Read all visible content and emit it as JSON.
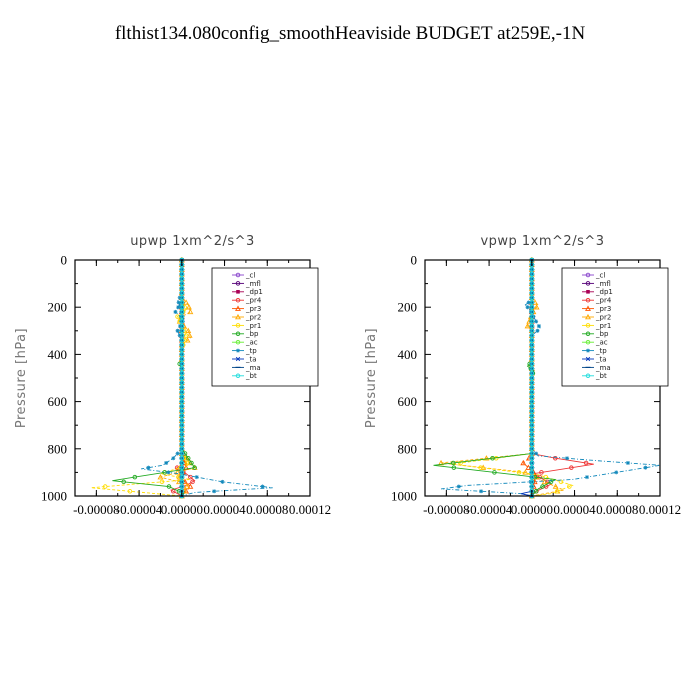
{
  "title": "flthist134.080config_smoothHeaviside  BUDGET at259E,-1N",
  "chart_data": [
    {
      "type": "line",
      "title": "upwp   1xm^2/s^3",
      "xlabel": "",
      "ylabel": "Pressure [hPa]",
      "xlim": [
        -0.0001,
        0.00012
      ],
      "ylim": [
        1000,
        0
      ],
      "xticks": [
        "-0.00008",
        "-0.00004",
        "0.00000",
        "0.00004",
        "0.00008",
        "0.00012"
      ],
      "xtick_values": [
        -8e-05,
        -4e-05,
        0,
        4e-05,
        8e-05,
        0.00012
      ],
      "yticks": [
        "0",
        "200",
        "400",
        "600",
        "800",
        "1000"
      ],
      "ytick_values": [
        0,
        200,
        400,
        600,
        800,
        1000
      ],
      "legend": "top-right",
      "series": [
        {
          "name": "_cl",
          "color": "#8844cc",
          "values": [
            [
              0,
              0
            ],
            [
              0,
              200
            ],
            [
              0,
              400
            ],
            [
              0,
              600
            ],
            [
              0,
              800
            ],
            [
              0,
              1000
            ]
          ]
        },
        {
          "name": "_mfl",
          "color": "#550077",
          "values": [
            [
              0,
              0
            ],
            [
              0,
              200
            ],
            [
              0,
              400
            ],
            [
              0,
              600
            ],
            [
              0,
              800
            ],
            [
              0,
              1000
            ]
          ]
        },
        {
          "name": "_dp1",
          "color": "#aa0055",
          "values": [
            [
              0,
              0
            ],
            [
              0,
              200
            ],
            [
              0,
              400
            ],
            [
              0,
              600
            ],
            [
              0,
              800
            ],
            [
              0,
              1000
            ]
          ]
        },
        {
          "name": "_pr4",
          "color": "#ee3333",
          "values": [
            [
              0,
              0
            ],
            [
              0,
              800
            ],
            [
              2e-06,
              860
            ],
            [
              -6e-06,
              885
            ],
            [
              4e-06,
              905
            ],
            [
              1.2e-05,
              935
            ],
            [
              4e-06,
              955
            ],
            [
              -1e-05,
              975
            ],
            [
              0,
              1000
            ]
          ]
        },
        {
          "name": "_pr3",
          "color": "#ff5500",
          "values": [
            [
              0,
              0
            ],
            [
              0,
              820
            ],
            [
              4e-06,
              880
            ],
            [
              -2e-06,
              920
            ],
            [
              8e-06,
              960
            ],
            [
              0,
              1000
            ]
          ]
        },
        {
          "name": "_pr2",
          "color": "#ffaa00",
          "values": [
            [
              0,
              0
            ],
            [
              0,
              160
            ],
            [
              6e-06,
              190
            ],
            [
              8e-06,
              220
            ],
            [
              -4e-06,
              250
            ],
            [
              6e-06,
              300
            ],
            [
              8e-06,
              330
            ],
            [
              0,
              360
            ],
            [
              0,
              820
            ],
            [
              1.2e-05,
              880
            ],
            [
              -2e-05,
              920
            ],
            [
              6e-06,
              950
            ],
            [
              0,
              1000
            ]
          ]
        },
        {
          "name": "_pr1",
          "color": "#ffdd00",
          "values": [
            [
              0,
              0
            ],
            [
              0,
              180
            ],
            [
              4e-06,
              210
            ],
            [
              -4e-06,
              240
            ],
            [
              4e-06,
              320
            ],
            [
              0,
              380
            ],
            [
              0,
              820
            ],
            [
              6e-06,
              870
            ],
            [
              -2e-05,
              905
            ],
            [
              8e-06,
              930
            ],
            [
              -8.5e-05,
              965
            ],
            [
              0,
              1000
            ]
          ]
        },
        {
          "name": "_bp",
          "color": "#22aa22",
          "values": [
            [
              0,
              0
            ],
            [
              0,
              420
            ],
            [
              -2e-06,
              440
            ],
            [
              0,
              460
            ],
            [
              0,
              800
            ],
            [
              1.2e-05,
              880
            ],
            [
              -6.5e-05,
              935
            ],
            [
              -1.2e-05,
              960
            ],
            [
              2e-06,
              990
            ],
            [
              0,
              1000
            ]
          ]
        },
        {
          "name": "_ac",
          "color": "#66ee33",
          "values": [
            [
              0,
              0
            ],
            [
              0,
              1000
            ]
          ]
        },
        {
          "name": "_tp",
          "color": "#1188bb",
          "values": [
            [
              0,
              0
            ],
            [
              0,
              150
            ],
            [
              -4e-06,
              170
            ],
            [
              -2e-06,
              190
            ],
            [
              -6e-06,
              220
            ],
            [
              2e-06,
              250
            ],
            [
              -4e-06,
              300
            ],
            [
              0,
              340
            ],
            [
              0,
              800
            ],
            [
              -8e-06,
              840
            ],
            [
              -1.8e-05,
              870
            ],
            [
              -3.8e-05,
              885
            ],
            [
              -4e-06,
              905
            ],
            [
              3.8e-05,
              940
            ],
            [
              8.5e-05,
              965
            ],
            [
              1.2e-05,
              985
            ],
            [
              0,
              1000
            ]
          ]
        },
        {
          "name": "_ta",
          "color": "#0033bb",
          "values": [
            [
              0,
              0
            ],
            [
              0,
              1000
            ]
          ]
        },
        {
          "name": "_ma",
          "color": "#004488",
          "values": [
            [
              0,
              0
            ],
            [
              0,
              1000
            ]
          ]
        },
        {
          "name": "_bt",
          "color": "#22dddd",
          "values": [
            [
              0,
              0
            ],
            [
              0,
              1000
            ]
          ]
        }
      ]
    },
    {
      "type": "line",
      "title": "vpwp   1xm^2/s^3",
      "xlabel": "",
      "ylabel": "Pressure [hPa]",
      "xlim": [
        -0.0001,
        0.00012
      ],
      "ylim": [
        1000,
        0
      ],
      "xticks": [
        "-0.00008",
        "-0.00004",
        "0.00000",
        "0.00004",
        "0.00008",
        "0.00012"
      ],
      "xtick_values": [
        -8e-05,
        -4e-05,
        0,
        4e-05,
        8e-05,
        0.00012
      ],
      "yticks": [
        "0",
        "200",
        "400",
        "600",
        "800",
        "1000"
      ],
      "ytick_values": [
        0,
        200,
        400,
        600,
        800,
        1000
      ],
      "legend": "top-right",
      "series": [
        {
          "name": "_cl",
          "color": "#8844cc",
          "values": [
            [
              0,
              0
            ],
            [
              0,
              200
            ],
            [
              0,
              400
            ],
            [
              0,
              600
            ],
            [
              0,
              800
            ],
            [
              0,
              1000
            ]
          ]
        },
        {
          "name": "_mfl",
          "color": "#550077",
          "values": [
            [
              0,
              0
            ],
            [
              0,
              200
            ],
            [
              0,
              400
            ],
            [
              0,
              600
            ],
            [
              0,
              800
            ],
            [
              0,
              1000
            ]
          ]
        },
        {
          "name": "_dp1",
          "color": "#aa0055",
          "values": [
            [
              0,
              0
            ],
            [
              0,
              200
            ],
            [
              0,
              400
            ],
            [
              0,
              600
            ],
            [
              0,
              800
            ],
            [
              0,
              1000
            ]
          ]
        },
        {
          "name": "_pr4",
          "color": "#ee3333",
          "values": [
            [
              0,
              0
            ],
            [
              0,
              820
            ],
            [
              2.2e-05,
              840
            ],
            [
              5.8e-05,
              865
            ],
            [
              2e-06,
              905
            ],
            [
              1.8e-05,
              950
            ],
            [
              2e-06,
              985
            ],
            [
              0,
              1000
            ]
          ]
        },
        {
          "name": "_pr3",
          "color": "#ff5500",
          "values": [
            [
              0,
              0
            ],
            [
              0,
              830
            ],
            [
              -8e-06,
              860
            ],
            [
              4e-06,
              910
            ],
            [
              0,
              1000
            ]
          ]
        },
        {
          "name": "_pr2",
          "color": "#ffaa00",
          "values": [
            [
              0,
              0
            ],
            [
              0,
              170
            ],
            [
              6e-06,
              190
            ],
            [
              0,
              230
            ],
            [
              -4e-06,
              280
            ],
            [
              0,
              300
            ],
            [
              0,
              820
            ],
            [
              -8.5e-05,
              860
            ],
            [
              -6e-06,
              900
            ],
            [
              1.2e-05,
              940
            ],
            [
              3e-05,
              975
            ],
            [
              0,
              1000
            ]
          ]
        },
        {
          "name": "_pr1",
          "color": "#ffdd00",
          "values": [
            [
              0,
              0
            ],
            [
              0,
              820
            ],
            [
              -7.5e-05,
              865
            ],
            [
              6e-06,
              910
            ],
            [
              3.8e-05,
              955
            ],
            [
              1.8e-05,
              990
            ],
            [
              0,
              1000
            ]
          ]
        },
        {
          "name": "_bp",
          "color": "#22aa22",
          "values": [
            [
              0,
              0
            ],
            [
              0,
              430
            ],
            [
              -4e-06,
              450
            ],
            [
              2e-06,
              470
            ],
            [
              0,
              490
            ],
            [
              0,
              820
            ],
            [
              -9.2e-05,
              870
            ],
            [
              2.2e-05,
              930
            ],
            [
              6e-06,
              970
            ],
            [
              0,
              1000
            ]
          ]
        },
        {
          "name": "_ac",
          "color": "#66ee33",
          "values": [
            [
              0,
              0
            ],
            [
              0,
              1000
            ]
          ]
        },
        {
          "name": "_tp",
          "color": "#1188bb",
          "values": [
            [
              0,
              0
            ],
            [
              0,
              170
            ],
            [
              -6e-06,
              190
            ],
            [
              -2e-06,
              210
            ],
            [
              4e-06,
              260
            ],
            [
              8e-06,
              290
            ],
            [
              0,
              320
            ],
            [
              0,
              800
            ],
            [
              6e-06,
              830
            ],
            [
              6e-05,
              850
            ],
            [
              0.00012,
              870
            ],
            [
              3.8e-05,
              930
            ],
            [
              -6e-05,
              955
            ],
            [
              -8.5e-05,
              970
            ],
            [
              -1e-05,
              990
            ],
            [
              0,
              1000
            ]
          ]
        },
        {
          "name": "_ta",
          "color": "#0033bb",
          "values": [
            [
              0,
              0
            ],
            [
              0,
              980
            ],
            [
              -1e-05,
              990
            ],
            [
              0,
              1000
            ]
          ]
        },
        {
          "name": "_ma",
          "color": "#004488",
          "values": [
            [
              0,
              0
            ],
            [
              0,
              1000
            ]
          ]
        },
        {
          "name": "_bt",
          "color": "#22dddd",
          "values": [
            [
              0,
              0
            ],
            [
              0,
              1000
            ]
          ]
        }
      ]
    }
  ]
}
